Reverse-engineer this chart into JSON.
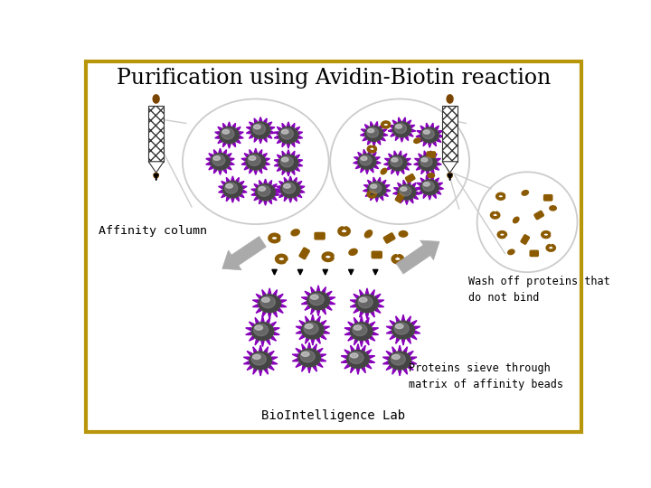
{
  "title": "Purification using Avidin-Biotin reaction",
  "title_fontsize": 17,
  "footer": "BioIntelligence Lab",
  "footer_fontsize": 10,
  "label_affinity": "Affinity column",
  "label_wash": "Wash off proteins that\ndo not bind",
  "label_proteins": "Proteins sieve through\nmatrix of affinity beads",
  "bg_color": "#ffffff",
  "border_color": "#b8960c",
  "bead_dark": "#444444",
  "bead_mid": "#888888",
  "bead_light": "#cccccc",
  "spike_color": "#8800bb",
  "protein_color": "#8B5A00",
  "arrow_gray": "#aaaaaa",
  "circle_line": "#cccccc",
  "drop_color": "#7a4500"
}
